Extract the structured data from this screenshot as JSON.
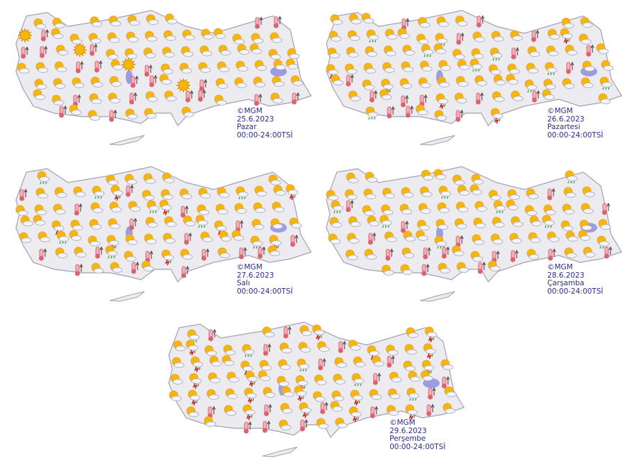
{
  "maps": [
    {
      "copyright": "©MGM",
      "date": "25.6.2023",
      "day": "Pazar",
      "time_range": "00:00-24:00TSİ",
      "mix": "ssssssssssssssttsTt"
    },
    {
      "copyright": "©MGM",
      "date": "26.6.2023",
      "day": "Pazartesi",
      "time_range": "00:00-24:00TSİ",
      "mix": "sssssssrsssrtssstsl"
    },
    {
      "copyright": "©MGM",
      "date": "27.6.2023",
      "day": "Salı",
      "time_range": "00:00-24:00TSİ",
      "mix": "sssssrsslssstsssrlt"
    },
    {
      "copyright": "©MGM",
      "date": "28.6.2023",
      "day": "Çarşamba",
      "time_range": "00:00-24:00TSİ",
      "mix": "ssssssrssssstsssrts"
    },
    {
      "copyright": "©MGM",
      "date": "29.6.2023",
      "day": "Perşembe",
      "time_range": "00:00-24:00TSİ",
      "mix": "sslsslsslssrtssstsl"
    }
  ],
  "icon_types": {
    "s": "partly-cloudy",
    "T": "sunny",
    "t": "hot-thermometer",
    "r": "showers",
    "l": "thunderstorm"
  },
  "colors": {
    "land": "#ececf0",
    "border": "#a0a0b0",
    "lake": "#9c9ce0",
    "label": "#2a2a9a",
    "sun": "#f5b800",
    "thermo": "#e06070"
  }
}
